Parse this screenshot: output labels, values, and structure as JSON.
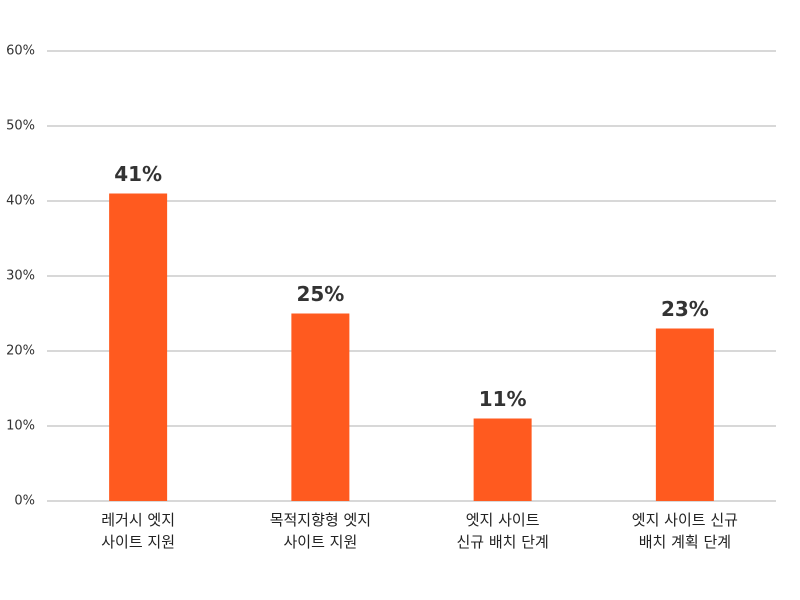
{
  "chart_data": {
    "type": "bar",
    "categories": [
      "레거시 엣지\n사이트 지원",
      "목적지향형 엣지\n사이트 지원",
      "엣지 사이트\n신규 배치 단계",
      "엣지 사이트 신규\n배치 계획 단계"
    ],
    "values": [
      41,
      25,
      11,
      23
    ],
    "value_labels": [
      "41%",
      "25%",
      "11%",
      "23%"
    ],
    "color": "#ff5a1f",
    "ylim": [
      0,
      60
    ],
    "yticks": [
      {
        "value": 0,
        "label": "0%"
      },
      {
        "value": 10,
        "label": "10%"
      },
      {
        "value": 20,
        "label": "20%"
      },
      {
        "value": 30,
        "label": "30%"
      },
      {
        "value": 40,
        "label": "40%"
      },
      {
        "value": 50,
        "label": "50%"
      },
      {
        "value": 60,
        "label": "60%"
      }
    ],
    "grid": true
  }
}
